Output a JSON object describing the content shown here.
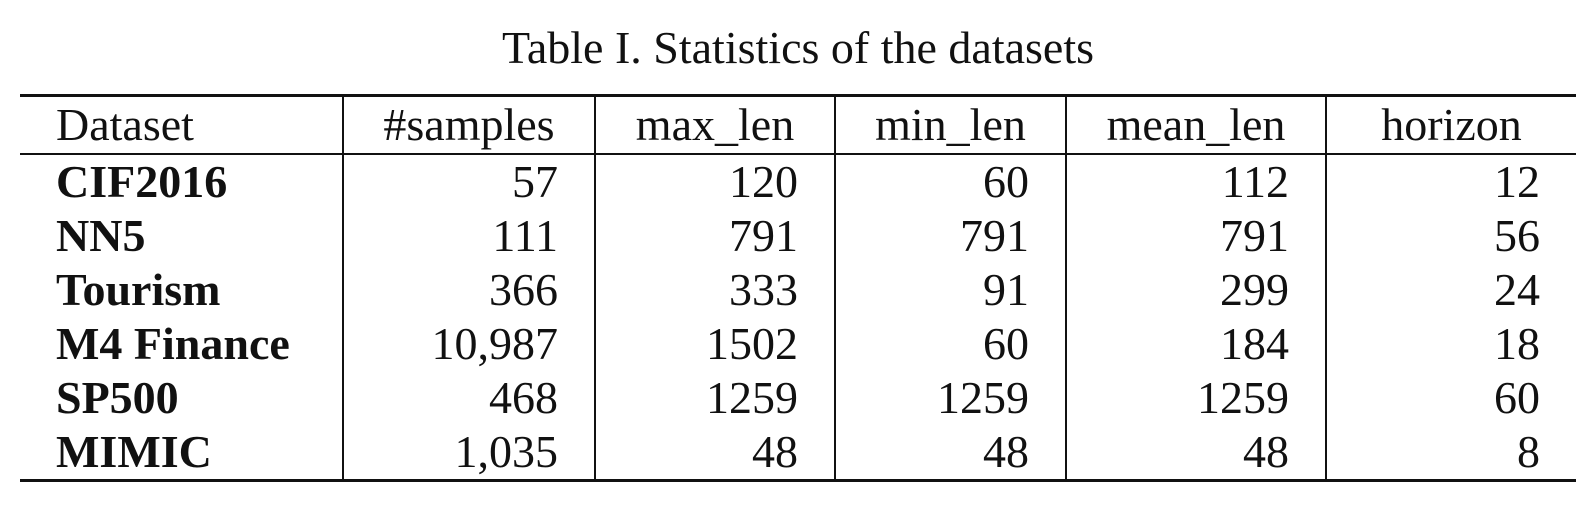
{
  "caption": "Table I. Statistics of the datasets",
  "headers": {
    "dataset": "Dataset",
    "samples": "#samples",
    "max_len": "max_len",
    "min_len": "min_len",
    "mean_len": "mean_len",
    "horizon": "horizon"
  },
  "rows": [
    {
      "dataset": "CIF2016",
      "samples": "57",
      "max_len": "120",
      "min_len": "60",
      "mean_len": "112",
      "horizon": "12"
    },
    {
      "dataset": "NN5",
      "samples": "111",
      "max_len": "791",
      "min_len": "791",
      "mean_len": "791",
      "horizon": "56"
    },
    {
      "dataset": "Tourism",
      "samples": "366",
      "max_len": "333",
      "min_len": "91",
      "mean_len": "299",
      "horizon": "24"
    },
    {
      "dataset": "M4 Finance",
      "samples": "10,987",
      "max_len": "1502",
      "min_len": "60",
      "mean_len": "184",
      "horizon": "18"
    },
    {
      "dataset": "SP500",
      "samples": "468",
      "max_len": "1259",
      "min_len": "1259",
      "mean_len": "1259",
      "horizon": "60"
    },
    {
      "dataset": "MIMIC",
      "samples": "1,035",
      "max_len": "48",
      "min_len": "48",
      "mean_len": "48",
      "horizon": "8"
    }
  ]
}
